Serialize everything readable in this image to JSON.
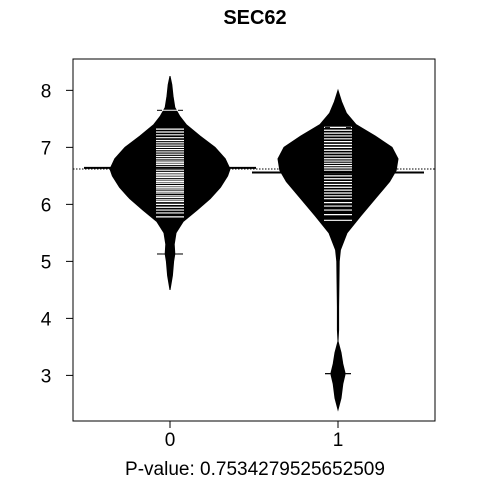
{
  "chart_data": {
    "type": "beanplot",
    "title": "SEC62",
    "xlabel": "P-value: 0.7534279525652509",
    "ylabel": "",
    "categories": [
      "0",
      "1"
    ],
    "ylim": [
      2.2,
      8.55
    ],
    "yticks": [
      3,
      4,
      5,
      6,
      7,
      8
    ],
    "overall_mean": 6.62,
    "groups": [
      {
        "name": "0",
        "mean": 6.64,
        "min": 5.13,
        "max": 7.65,
        "density": [
          [
            4.5,
            0.0
          ],
          [
            4.75,
            0.04
          ],
          [
            5.0,
            0.06
          ],
          [
            5.13,
            0.08
          ],
          [
            5.3,
            0.07
          ],
          [
            5.5,
            0.1
          ],
          [
            5.7,
            0.22
          ],
          [
            5.9,
            0.45
          ],
          [
            6.1,
            0.67
          ],
          [
            6.3,
            0.84
          ],
          [
            6.5,
            0.96
          ],
          [
            6.62,
            1.0
          ],
          [
            6.8,
            0.92
          ],
          [
            7.0,
            0.75
          ],
          [
            7.2,
            0.5
          ],
          [
            7.4,
            0.27
          ],
          [
            7.55,
            0.16
          ],
          [
            7.7,
            0.08
          ],
          [
            7.9,
            0.05
          ],
          [
            8.1,
            0.03
          ],
          [
            8.25,
            0.0
          ]
        ],
        "observations": [
          5.78,
          5.85,
          5.9,
          5.95,
          6.0,
          6.05,
          6.08,
          6.12,
          6.15,
          6.2,
          6.23,
          6.27,
          6.3,
          6.33,
          6.37,
          6.4,
          6.43,
          6.47,
          6.5,
          6.53,
          6.56,
          6.6,
          6.63,
          6.66,
          6.7,
          6.73,
          6.76,
          6.8,
          6.84,
          6.88,
          6.92,
          6.96,
          7.0,
          7.04,
          7.08,
          7.12,
          7.17,
          7.22,
          7.27,
          7.32
        ]
      },
      {
        "name": "1",
        "mean": 6.56,
        "min": 3.03,
        "max": 7.35,
        "density": [
          [
            2.4,
            0.0
          ],
          [
            2.6,
            0.05
          ],
          [
            2.85,
            0.08
          ],
          [
            3.03,
            0.12
          ],
          [
            3.2,
            0.08
          ],
          [
            3.4,
            0.05
          ],
          [
            3.6,
            0.0
          ],
          [
            3.8,
            0.01
          ],
          [
            4.2,
            0.01
          ],
          [
            4.6,
            0.015
          ],
          [
            5.0,
            0.02
          ],
          [
            5.2,
            0.04
          ],
          [
            5.5,
            0.15
          ],
          [
            5.8,
            0.38
          ],
          [
            6.1,
            0.62
          ],
          [
            6.4,
            0.86
          ],
          [
            6.6,
            0.97
          ],
          [
            6.8,
            1.0
          ],
          [
            7.0,
            0.9
          ],
          [
            7.2,
            0.62
          ],
          [
            7.4,
            0.3
          ],
          [
            7.6,
            0.14
          ],
          [
            7.8,
            0.06
          ],
          [
            8.0,
            0.0
          ]
        ],
        "observations": [
          5.72,
          5.82,
          5.9,
          5.97,
          6.03,
          6.1,
          6.15,
          6.2,
          6.25,
          6.3,
          6.35,
          6.4,
          6.45,
          6.5,
          6.55,
          6.6,
          6.64,
          6.68,
          6.72,
          6.76,
          6.8,
          6.85,
          6.9,
          6.95,
          7.0,
          7.05,
          7.1,
          7.15,
          7.2,
          7.25,
          7.3,
          7.35
        ]
      }
    ],
    "colors": {
      "bean": "#000000",
      "observation_line": "#ffffff",
      "background": "#ffffff"
    },
    "grid": false,
    "legend": "none"
  }
}
